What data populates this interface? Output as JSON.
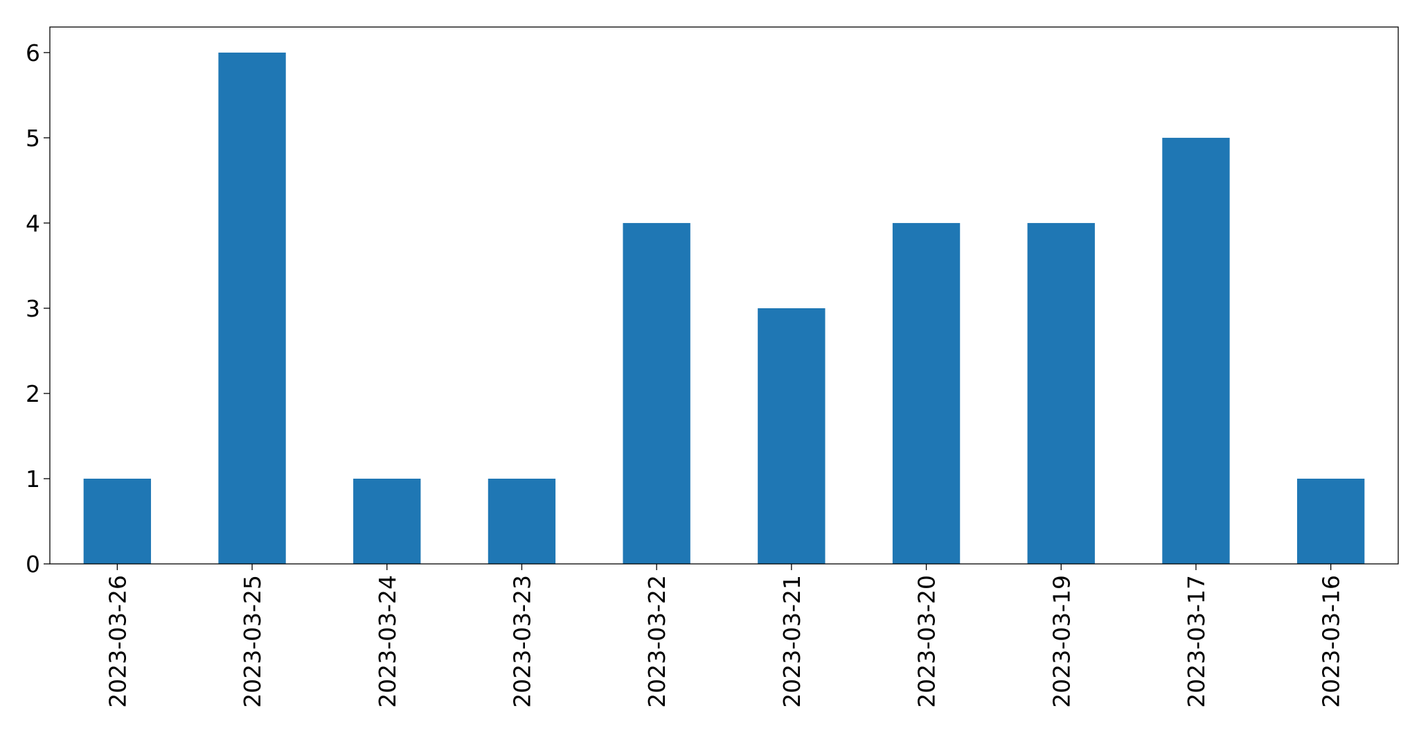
{
  "chart_data": {
    "type": "bar",
    "categories": [
      "2023-03-26",
      "2023-03-25",
      "2023-03-24",
      "2023-03-23",
      "2023-03-22",
      "2023-03-21",
      "2023-03-20",
      "2023-03-19",
      "2023-03-17",
      "2023-03-16"
    ],
    "values": [
      1,
      6,
      1,
      1,
      4,
      3,
      4,
      4,
      5,
      1
    ],
    "color": "#1f77b4",
    "ylim": [
      0,
      6.3
    ],
    "yticks": [
      0,
      1,
      2,
      3,
      4,
      5,
      6
    ],
    "grid": false
  }
}
